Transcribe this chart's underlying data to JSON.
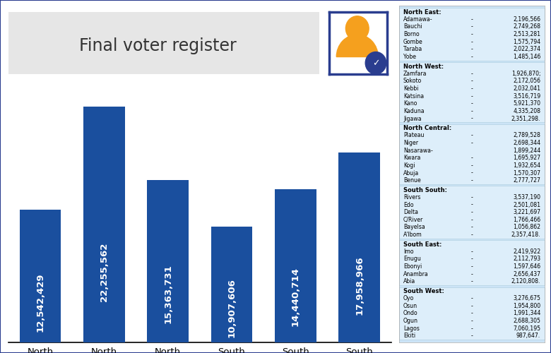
{
  "title": "Final voter register",
  "outer_bg": "#ffffff",
  "chart_bg": "#ffffff",
  "bar_color": "#1a4f9e",
  "title_bg": "#e8e8e8",
  "categories": [
    "North\nEast",
    "North\nWest",
    "North\nCentral",
    "South\nEast",
    "South\nSouth",
    "South\nWest"
  ],
  "values": [
    12542429,
    22255562,
    15363731,
    10907606,
    14440714,
    17958966
  ],
  "bar_labels": [
    "12,542,429",
    "22,255,562",
    "15,363,731",
    "10,907,606",
    "14,440,714",
    "17,958,966"
  ],
  "sidebar_bg": "#cce4f7",
  "sidebar_sections": [
    {
      "header": "North East:",
      "entries": [
        [
          "Adamawa-",
          "-",
          "2,196,566"
        ],
        [
          "Bauchi",
          "-",
          "2,749,268"
        ],
        [
          "Borno",
          "-",
          "2,513,281"
        ],
        [
          "Gombe",
          "-",
          "1,575,794"
        ],
        [
          "Taraba",
          "-",
          "2,022,374"
        ],
        [
          "Yobe",
          "-",
          "1,485,146"
        ]
      ]
    },
    {
      "header": "North West:",
      "entries": [
        [
          "Zamfara",
          "-",
          "1,926,870;"
        ],
        [
          "Sokoto",
          "-",
          "2,172,056"
        ],
        [
          "Kebbi",
          "-",
          "2,032,041"
        ],
        [
          "Katsina",
          "-",
          "3,516,719"
        ],
        [
          "Kano",
          "-",
          "5,921,370"
        ],
        [
          "Kaduna",
          "-",
          "4,335,208"
        ],
        [
          "Jigawa",
          "-",
          "2,351,298."
        ]
      ]
    },
    {
      "header": "North Central:",
      "entries": [
        [
          "Plateau",
          "-",
          "2,789,528"
        ],
        [
          "Niger",
          "-",
          "2,698,344"
        ],
        [
          "Nasarawa-",
          "",
          "1,899,244"
        ],
        [
          "Kwara",
          "-",
          "1,695,927"
        ],
        [
          "Kogi",
          "-",
          "1,932,654"
        ],
        [
          "Abuja",
          "-",
          "1,570,307"
        ],
        [
          "Benue",
          "-",
          "2,777,727"
        ]
      ]
    },
    {
      "header": "South South:",
      "entries": [
        [
          "Rivers",
          "-",
          "3,537,190"
        ],
        [
          "Edo",
          "-",
          "2,501,081"
        ],
        [
          "Delta",
          "-",
          "3,221,697"
        ],
        [
          "C/River",
          "-",
          "1,766,466"
        ],
        [
          "Bayelsa",
          "-",
          "1,056,862"
        ],
        [
          "A'Ibom",
          "-",
          "2,357,418."
        ]
      ]
    },
    {
      "header": "South East:",
      "entries": [
        [
          "Imo",
          "-",
          "2,419,922"
        ],
        [
          "Enugu",
          "-",
          "2,112,793"
        ],
        [
          "Ebonyi",
          "-",
          "1,597,646"
        ],
        [
          "Anambra",
          "-",
          "2,656,437"
        ],
        [
          "Abia",
          "-",
          "2,120,808."
        ]
      ]
    },
    {
      "header": "South West:",
      "entries": [
        [
          "Oyo",
          "-",
          "3,276,675"
        ],
        [
          "Osun",
          "-",
          "1,954,800"
        ],
        [
          "Ondo",
          "-",
          "1,991,344"
        ],
        [
          "Ogun",
          "-",
          "2,688,305"
        ],
        [
          "Lagos",
          "-",
          "7,060,195"
        ],
        [
          "Ekiti",
          "-",
          "987,647."
        ]
      ]
    }
  ]
}
